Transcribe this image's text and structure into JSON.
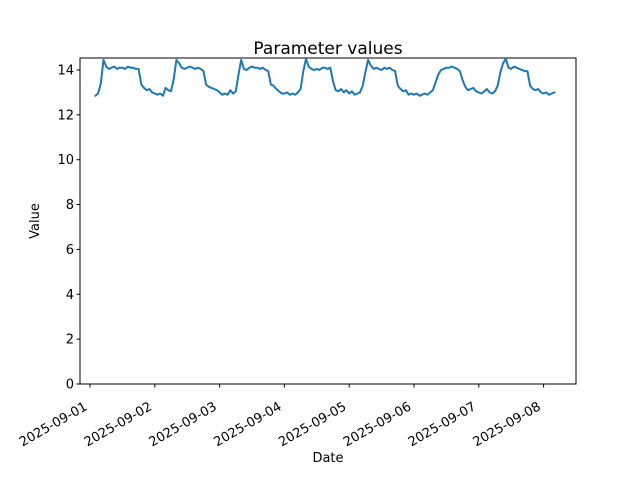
{
  "chart_data": {
    "type": "line",
    "title": "Parameter values",
    "xlabel": "Date",
    "ylabel": "Value",
    "grid": false,
    "legend": null,
    "x_tick_labels": [
      "2025-09-01",
      "2025-09-02",
      "2025-09-03",
      "2025-09-04",
      "2025-09-05",
      "2025-09-06",
      "2025-09-07",
      "2025-09-08"
    ],
    "y_ticks": [
      0,
      2,
      4,
      6,
      8,
      10,
      12,
      14
    ],
    "ylim": [
      0,
      14.53
    ],
    "x_start": "2025-09-01 02:00",
    "x_start_hour_offset": 2,
    "x_interval_hours": 1,
    "x_label_rotation_deg": 30,
    "style": {
      "line_color": "#1f77b4",
      "axis_color": "#000000",
      "background": "#ffffff"
    },
    "values": [
      12.85,
      12.95,
      13.4,
      14.45,
      14.15,
      14.05,
      14.1,
      14.15,
      14.05,
      14.1,
      14.1,
      14.05,
      14.15,
      14.1,
      14.1,
      14.05,
      14.05,
      13.35,
      13.2,
      13.1,
      13.15,
      13.0,
      12.95,
      12.9,
      12.95,
      12.85,
      13.2,
      13.1,
      13.05,
      13.6,
      14.45,
      14.3,
      14.1,
      14.05,
      14.1,
      14.15,
      14.1,
      14.05,
      14.1,
      14.05,
      13.95,
      13.35,
      13.25,
      13.2,
      13.15,
      13.1,
      13.0,
      12.9,
      12.95,
      12.9,
      13.1,
      12.95,
      13.05,
      13.8,
      14.45,
      14.05,
      14.0,
      14.1,
      14.15,
      14.1,
      14.1,
      14.05,
      14.1,
      14.0,
      13.95,
      13.35,
      13.3,
      13.15,
      13.05,
      12.95,
      12.95,
      13.0,
      12.9,
      12.95,
      12.9,
      13.0,
      13.15,
      13.95,
      14.5,
      14.15,
      14.05,
      14.0,
      14.05,
      14.0,
      14.1,
      14.1,
      14.05,
      14.1,
      13.5,
      13.1,
      13.05,
      13.15,
      13.0,
      13.1,
      12.95,
      13.05,
      12.9,
      12.95,
      13.0,
      13.3,
      13.9,
      14.45,
      14.2,
      14.05,
      14.1,
      14.05,
      14.0,
      14.1,
      14.05,
      14.1,
      14.0,
      13.95,
      13.3,
      13.15,
      13.05,
      13.1,
      12.9,
      12.95,
      12.9,
      12.95,
      12.85,
      12.9,
      12.95,
      12.9,
      13.0,
      13.1,
      13.45,
      13.8,
      14.0,
      14.05,
      14.1,
      14.1,
      14.15,
      14.1,
      14.05,
      13.95,
      13.55,
      13.25,
      13.1,
      13.15,
      13.2,
      13.05,
      13.0,
      12.95,
      13.05,
      13.15,
      13.0,
      12.95,
      13.05,
      13.3,
      13.9,
      14.3,
      14.5,
      14.1,
      14.05,
      14.15,
      14.1,
      14.05,
      14.0,
      13.95,
      13.95,
      13.3,
      13.15,
      13.1,
      13.15,
      13.0,
      12.95,
      13.0,
      12.9,
      12.95,
      13.0
    ]
  }
}
